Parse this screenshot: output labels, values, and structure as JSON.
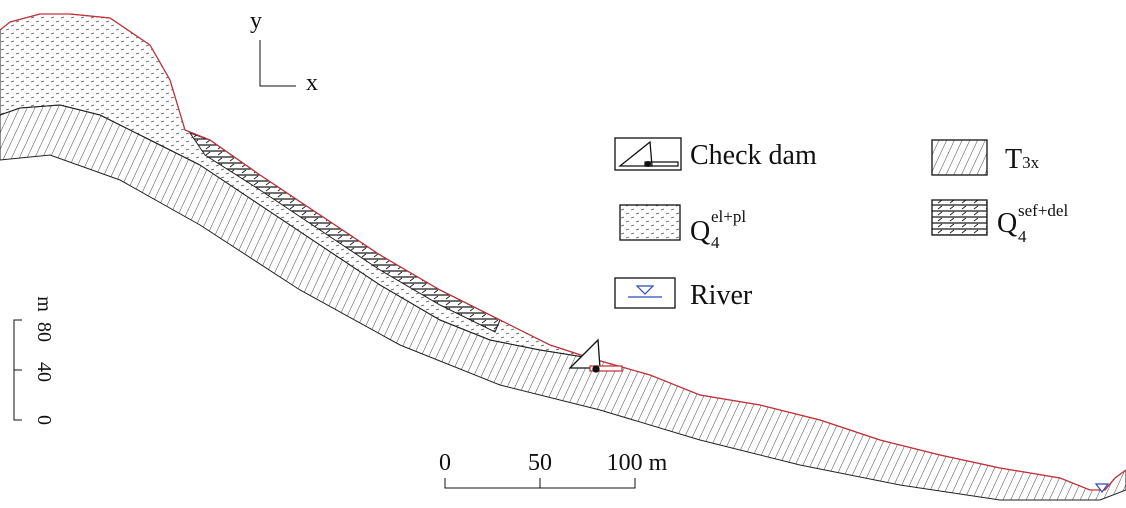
{
  "axes": {
    "y": "y",
    "x": "x"
  },
  "legend": [
    {
      "label": "Check dam"
    },
    {
      "label": "T",
      "subscript": "3x"
    },
    {
      "label": "Q",
      "subscript": "4",
      "superscript": "el+pl"
    },
    {
      "label": "Q",
      "subscript": "4",
      "superscript": "sef+del"
    },
    {
      "label": "River"
    }
  ],
  "vertical_scale": {
    "labels": [
      "0",
      "40",
      "80"
    ],
    "unit": "m"
  },
  "horizontal_scale": {
    "labels": [
      "0",
      "50",
      "100 m"
    ]
  }
}
